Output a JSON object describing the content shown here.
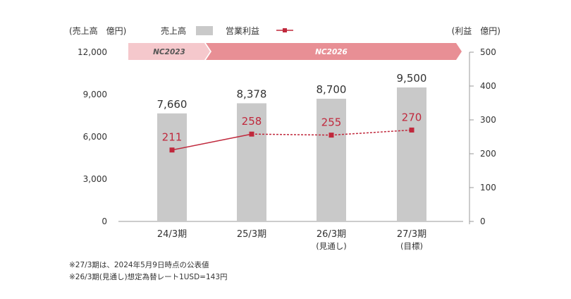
{
  "chart_data": {
    "type": "bar",
    "categories": [
      "24/3期",
      "25/3期",
      "26/3期",
      "27/3期"
    ],
    "category_sublabels": [
      "",
      "",
      "(見通し)",
      "(目標)"
    ],
    "left_axis": {
      "label": "(売上高　億円)",
      "range": [
        0,
        12000
      ],
      "ticks": [
        "0",
        "3,000",
        "6,000",
        "9,000",
        "12,000"
      ]
    },
    "right_axis": {
      "label": "(利益　億円)",
      "range": [
        0,
        500
      ],
      "ticks": [
        "0",
        "100",
        "200",
        "300",
        "400",
        "500"
      ]
    },
    "series": [
      {
        "name": "売上高",
        "type": "bar",
        "axis": "left",
        "color": "#c9c9c9",
        "values": [
          7660,
          8378,
          8700,
          9500
        ],
        "labels": [
          "7,660",
          "8,378",
          "8,700",
          "9,500"
        ]
      },
      {
        "name": "営業利益",
        "type": "line",
        "axis": "right",
        "color": "#c0283c",
        "values": [
          211,
          258,
          255,
          270
        ],
        "labels": [
          "211",
          "258",
          "255",
          "270"
        ],
        "line_styles": [
          "solid",
          "dotted",
          "dotted"
        ]
      }
    ],
    "plan_bands": [
      {
        "label": "NC2023",
        "from_category": 0,
        "to_category": 0,
        "color": "#f5c8cc"
      },
      {
        "label": "NC2026",
        "from_category": 1,
        "to_category": 3,
        "color": "#e88f95"
      }
    ],
    "legend_position": "top",
    "grid": false
  },
  "notes": [
    "※27/3期は、2024年5月9日時点の公表値",
    "※26/3期(見通し)想定為替レート1USD=143円"
  ]
}
